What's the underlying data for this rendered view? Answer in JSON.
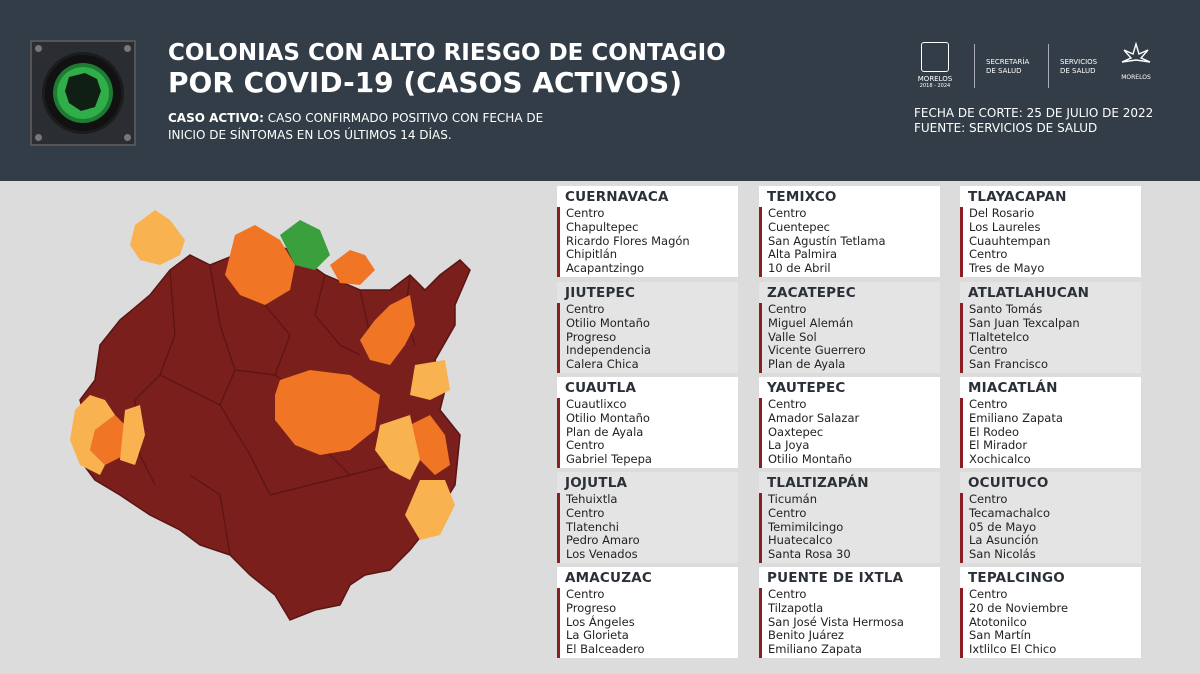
{
  "header": {
    "title_line1": "COLONIAS CON ALTO RIESGO DE CONTAGIO",
    "title_line2": "POR COVID-19 (CASOS ACTIVOS)",
    "definition_label": "CASO ACTIVO:",
    "definition_line1": " CASO CONFIRMADO POSITIVO CON FECHA DE",
    "definition_line2": "INICIO DE SÍNTOMAS EN LOS ÚLTIMOS 14 DÍAS.",
    "cutoff_date": "FECHA DE CORTE: 25 DE JULIO DE 2022",
    "source": "FUENTE: SERVICIOS DE SALUD",
    "traffic_light_icon": "green-traffic-light-icon"
  },
  "logos": {
    "morelos": "MORELOS",
    "morelos_years": "2018 - 2024",
    "secretaria_line1": "SECRETARÍA",
    "secretaria_line2": "DE SALUD",
    "servicios_line1": "SERVICIOS",
    "servicios_line2": "DE SALUD",
    "morelos_right": "MORELOS"
  },
  "colors": {
    "header_bg": "#333d47",
    "page_bg": "#dcdcdc",
    "card_accent": "#8a1f23",
    "risk_high": "#7a1f1c",
    "risk_medium": "#f07524",
    "risk_low": "#f9b250",
    "risk_none": "#3aa03e"
  },
  "municipalities": [
    {
      "name": "CUERNAVACA",
      "colonias": [
        "Centro",
        "Chapultepec",
        "Ricardo Flores Magón",
        "Chipitlán",
        "Acapantzingo"
      ]
    },
    {
      "name": "TEMIXCO",
      "colonias": [
        "Centro",
        "Cuentepec",
        "San Agustín Tetlama",
        "Alta Palmira",
        "10 de Abril"
      ]
    },
    {
      "name": "TLAYACAPAN",
      "colonias": [
        "Del Rosario",
        "Los Laureles",
        "Cuauhtempan",
        "Centro",
        "Tres de Mayo"
      ]
    },
    {
      "name": "JIUTEPEC",
      "colonias": [
        "Centro",
        "Otilio Montaño",
        "Progreso",
        "Independencia",
        "Calera Chica"
      ]
    },
    {
      "name": "ZACATEPEC",
      "colonias": [
        "Centro",
        "Miguel Alemán",
        "Valle Sol",
        "Vicente Guerrero",
        "Plan de Ayala"
      ]
    },
    {
      "name": "ATLATLAHUCAN",
      "colonias": [
        "Santo Tomás",
        "San Juan Texcalpan",
        "Tlaltetelco",
        "Centro",
        "San Francisco"
      ]
    },
    {
      "name": "CUAUTLA",
      "colonias": [
        "Cuautlixco",
        "Otilio Montaño",
        "Plan de Ayala",
        "Centro",
        "Gabriel Tepepa"
      ]
    },
    {
      "name": "YAUTEPEC",
      "colonias": [
        "Centro",
        "Amador Salazar",
        "Oaxtepec",
        "La Joya",
        "Otilio Montaño"
      ]
    },
    {
      "name": "MIACATLÁN",
      "colonias": [
        "Centro",
        "Emiliano Zapata",
        "El Rodeo",
        "El Mirador",
        "Xochicalco"
      ]
    },
    {
      "name": "JOJUTLA",
      "colonias": [
        "Tehuixtla",
        "Centro",
        "Tlatenchi",
        "Pedro Amaro",
        "Los Venados"
      ]
    },
    {
      "name": "TLALTIZAPÁN",
      "colonias": [
        "Ticumán",
        "Centro",
        "Temimilcingo",
        "Huatecalco",
        "Santa Rosa 30"
      ]
    },
    {
      "name": "OCUITUCO",
      "colonias": [
        "Centro",
        "Tecamachalco",
        "05 de Mayo",
        "La Asunción",
        "San Nicolás"
      ]
    },
    {
      "name": "AMACUZAC",
      "colonias": [
        "Centro",
        "Progreso",
        "Los Ángeles",
        "La Glorieta",
        "El Balceadero"
      ]
    },
    {
      "name": "PUENTE DE IXTLA",
      "colonias": [
        "Centro",
        "Tilzapotla",
        "San José Vista Hermosa",
        "Benito Juárez",
        "Emiliano Zapata"
      ]
    },
    {
      "name": "TEPALCINGO",
      "colonias": [
        "Centro",
        "20 de Noviembre",
        "Atotonilco",
        "San Martín",
        "Ixtlilco El Chico"
      ]
    }
  ]
}
